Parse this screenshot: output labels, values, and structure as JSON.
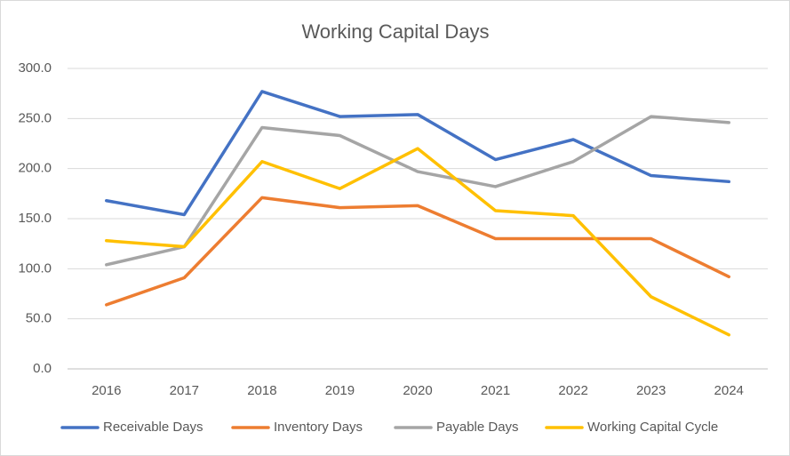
{
  "chart_data": {
    "type": "line",
    "title": "Working Capital Days",
    "categories": [
      "2016",
      "2017",
      "2018",
      "2019",
      "2020",
      "2021",
      "2022",
      "2023",
      "2024"
    ],
    "series": [
      {
        "name": "Receivable Days",
        "color": "#4472c4",
        "values": [
          168,
          154,
          277,
          252,
          254,
          209,
          229,
          193,
          187
        ]
      },
      {
        "name": "Inventory Days",
        "color": "#ed7d31",
        "values": [
          64,
          91,
          171,
          161,
          163,
          130,
          130,
          130,
          92
        ]
      },
      {
        "name": "Payable Days",
        "color": "#a5a5a5",
        "values": [
          104,
          122,
          241,
          233,
          197,
          182,
          207,
          252,
          246
        ]
      },
      {
        "name": "Working Capital Cycle",
        "color": "#ffc000",
        "values": [
          128,
          122,
          207,
          180,
          220,
          158,
          153,
          72,
          34
        ]
      }
    ],
    "ylim": [
      0,
      300
    ],
    "yticks": [
      {
        "value": 0,
        "label": "0.0"
      },
      {
        "value": 50,
        "label": "50.0"
      },
      {
        "value": 100,
        "label": "100.0"
      },
      {
        "value": 150,
        "label": "150.0"
      },
      {
        "value": 200,
        "label": "200.0"
      },
      {
        "value": 250,
        "label": "250.0"
      },
      {
        "value": 300,
        "label": "300.0"
      }
    ],
    "grid": true,
    "legend": "bottom"
  }
}
